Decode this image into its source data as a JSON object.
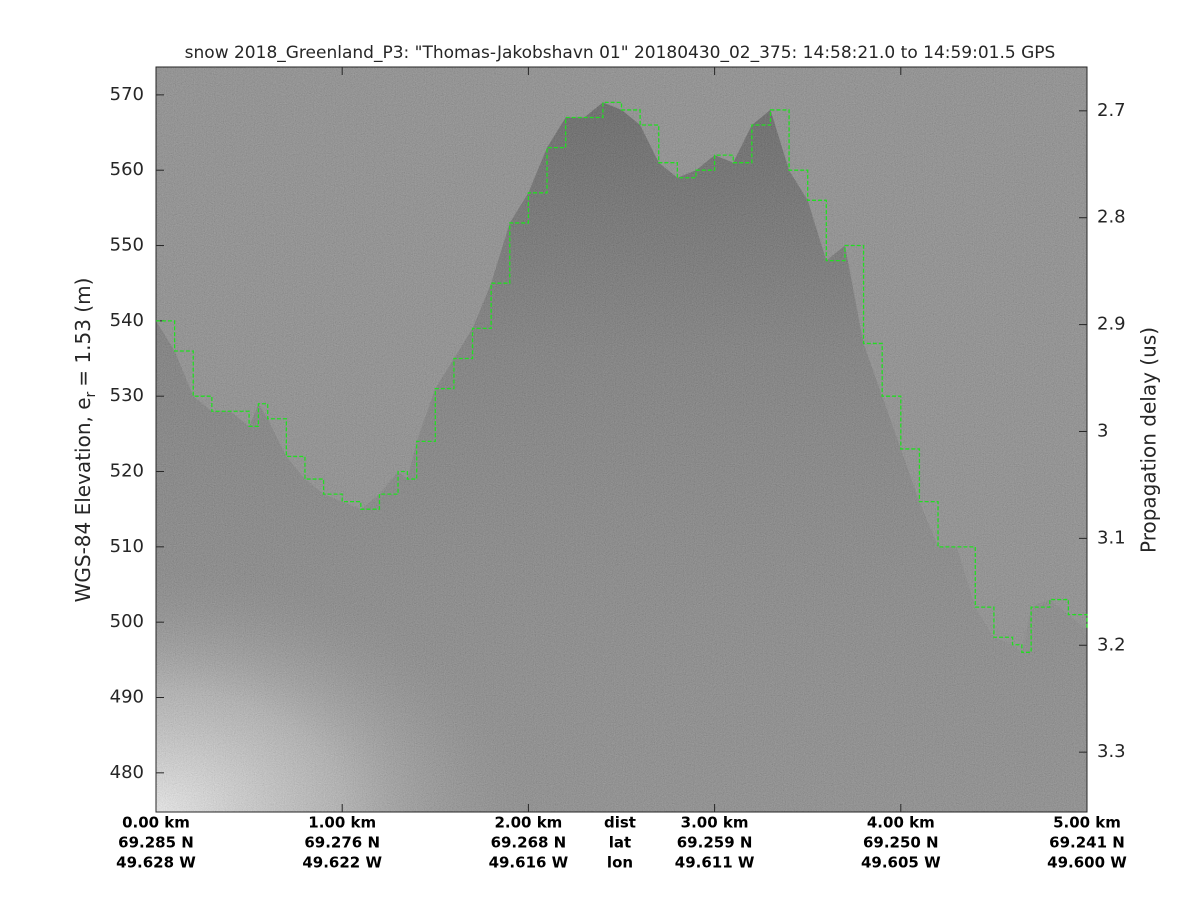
{
  "chart_data": {
    "type": "radargram",
    "title": "snow 2018_Greenland_P3: \"Thomas-Jakobshavn 01\"  20180430_02_375: 14:58:21.0 to 14:59:01.5 GPS",
    "ylabel": {
      "main": "WGS-84 Elevation, e",
      "sub": "r",
      "tail": "= 1.53 (m)"
    },
    "y2label": "Propagation delay (us)",
    "xlim": [
      0,
      5
    ],
    "ylim": [
      474.8,
      573.7
    ],
    "y2lim": [
      3.356,
      2.659
    ],
    "yticks": [
      480,
      490,
      500,
      510,
      520,
      530,
      540,
      550,
      560,
      570
    ],
    "y2ticks": [
      2.7,
      2.8,
      2.9,
      3,
      3.1,
      3.2,
      3.3
    ],
    "xticks": [
      {
        "value": 0,
        "label": "0.00 km"
      },
      {
        "value": 1,
        "label": "1.00 km"
      },
      {
        "value": 2,
        "label": "2.00 km"
      },
      {
        "value": 3,
        "label": "3.00 km"
      },
      {
        "value": 4,
        "label": "4.00 km"
      },
      {
        "value": 5,
        "label": "5.00 km"
      }
    ],
    "lat": [
      "69.285 N",
      "69.276 N",
      "69.268 N",
      "69.259 N",
      "69.250 N",
      "69.241 N"
    ],
    "lon": [
      "49.628 W",
      "49.622 W",
      "49.616 W",
      "49.611 W",
      "49.605 W",
      "49.600 W"
    ],
    "row_labels": [
      "dist",
      "lat",
      "lon"
    ],
    "surface": {
      "color": "#22dd22",
      "x": [
        0,
        0.1,
        0.2,
        0.3,
        0.4,
        0.5,
        0.55,
        0.6,
        0.7,
        0.8,
        0.9,
        1.0,
        1.1,
        1.2,
        1.3,
        1.35,
        1.4,
        1.5,
        1.6,
        1.7,
        1.8,
        1.9,
        2.0,
        2.1,
        2.2,
        2.3,
        2.4,
        2.5,
        2.6,
        2.7,
        2.8,
        2.9,
        3.0,
        3.1,
        3.2,
        3.3,
        3.4,
        3.5,
        3.6,
        3.7,
        3.8,
        3.9,
        4.0,
        4.1,
        4.2,
        4.3,
        4.4,
        4.5,
        4.6,
        4.65,
        4.7,
        4.8,
        4.9,
        5.0
      ],
      "values": [
        540,
        536,
        530,
        528,
        528,
        526,
        529,
        527,
        522,
        519,
        517,
        516,
        515,
        517,
        520,
        519,
        524,
        531,
        535,
        539,
        545,
        553,
        557,
        563,
        567,
        567,
        569,
        568,
        566,
        561,
        559,
        560,
        562,
        561,
        566,
        568,
        560,
        556,
        548,
        550,
        537,
        530,
        523,
        516,
        510,
        510,
        502,
        498,
        497,
        496,
        502,
        503,
        501,
        499
      ]
    }
  }
}
